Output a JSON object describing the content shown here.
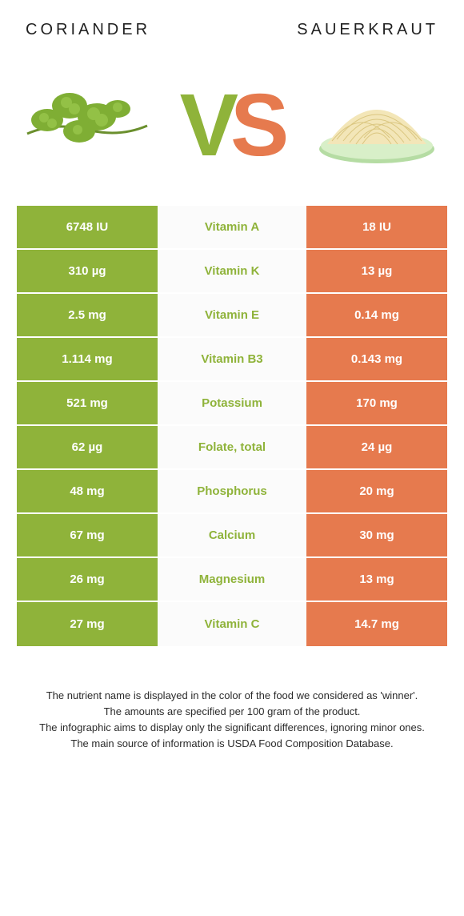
{
  "colors": {
    "left": "#8fb33a",
    "right": "#e67a4e",
    "mid_bg": "#fbfbfb",
    "title_text": "#222222",
    "note_text": "#2a2a2a"
  },
  "header": {
    "left_title": "CORIANDER",
    "right_title": "SAUERKRAUT",
    "vs_v": "V",
    "vs_s": "S"
  },
  "rows": [
    {
      "nutrient": "Vitamin A",
      "left": "6748 IU",
      "right": "18 IU",
      "winner": "left"
    },
    {
      "nutrient": "Vitamin K",
      "left": "310 µg",
      "right": "13 µg",
      "winner": "left"
    },
    {
      "nutrient": "Vitamin E",
      "left": "2.5 mg",
      "right": "0.14 mg",
      "winner": "left"
    },
    {
      "nutrient": "Vitamin B3",
      "left": "1.114 mg",
      "right": "0.143 mg",
      "winner": "left"
    },
    {
      "nutrient": "Potassium",
      "left": "521 mg",
      "right": "170 mg",
      "winner": "left"
    },
    {
      "nutrient": "Folate, total",
      "left": "62 µg",
      "right": "24 µg",
      "winner": "left"
    },
    {
      "nutrient": "Phosphorus",
      "left": "48 mg",
      "right": "20 mg",
      "winner": "left"
    },
    {
      "nutrient": "Calcium",
      "left": "67 mg",
      "right": "30 mg",
      "winner": "left"
    },
    {
      "nutrient": "Magnesium",
      "left": "26 mg",
      "right": "13 mg",
      "winner": "left"
    },
    {
      "nutrient": "Vitamin C",
      "left": "27 mg",
      "right": "14.7 mg",
      "winner": "left"
    }
  ],
  "notes": [
    "The nutrient name is displayed in the color of the food we considered as 'winner'.",
    "The amounts are specified per 100 gram of the product.",
    "The infographic aims to display only the significant differences, ignoring minor ones.",
    "The main source of information is USDA Food Composition Database."
  ]
}
